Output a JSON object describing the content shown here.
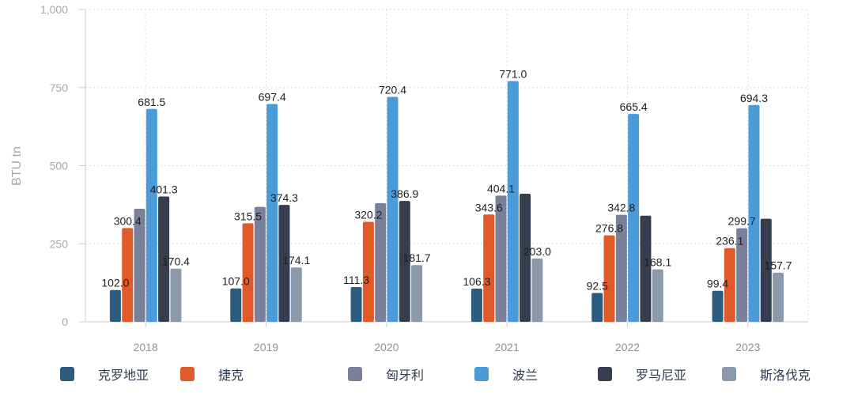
{
  "chart_data": {
    "type": "bar",
    "title": "",
    "xlabel": "",
    "ylabel": "BTU tn",
    "ylim": [
      0,
      1000
    ],
    "yticks": [
      "0",
      "250",
      "500",
      "750",
      "1,000"
    ],
    "ytick_values": [
      0,
      250,
      500,
      750,
      1000
    ],
    "grid": true,
    "legend_position": "bottom",
    "categories": [
      "2018",
      "2019",
      "2020",
      "2021",
      "2022",
      "2023"
    ],
    "series": [
      {
        "name": "克罗地亚",
        "color": "#2b5c7e",
        "values": [
          102.0,
          107.0,
          111.3,
          106.3,
          92.5,
          99.4
        ],
        "labels": [
          "102.0",
          "107.0",
          "111.3",
          "106.3",
          "92.5",
          "99.4"
        ]
      },
      {
        "name": "捷克",
        "color": "#e05a2a",
        "values": [
          300.4,
          315.5,
          320.2,
          343.6,
          276.8,
          236.1
        ],
        "labels": [
          "300.4",
          "315.5",
          "320.2",
          "343.6",
          "276.8",
          "236.1"
        ]
      },
      {
        "name": "匈牙利",
        "color": "#79809a",
        "values": [
          362,
          368,
          380,
          404.1,
          342.8,
          299.7
        ],
        "labels": [
          "",
          "",
          "",
          "404.1",
          "342.8",
          "299.7"
        ]
      },
      {
        "name": "波兰",
        "color": "#4a9bd8",
        "values": [
          681.5,
          697.4,
          720.4,
          771.0,
          665.4,
          694.3
        ],
        "labels": [
          "681.5",
          "697.4",
          "720.4",
          "771.0",
          "665.4",
          "694.3"
        ]
      },
      {
        "name": "罗马尼亚",
        "color": "#363d4f",
        "values": [
          401.3,
          374.3,
          386.9,
          410,
          340,
          330
        ],
        "labels": [
          "401.3",
          "374.3",
          "386.9",
          "",
          "",
          ""
        ]
      },
      {
        "name": "斯洛伐克",
        "color": "#8a9aab",
        "values": [
          170.4,
          174.1,
          181.7,
          203.0,
          168.1,
          157.7
        ],
        "labels": [
          "170.4",
          "174.1",
          "181.7",
          "203.0",
          "168.1",
          "157.7"
        ]
      }
    ]
  }
}
